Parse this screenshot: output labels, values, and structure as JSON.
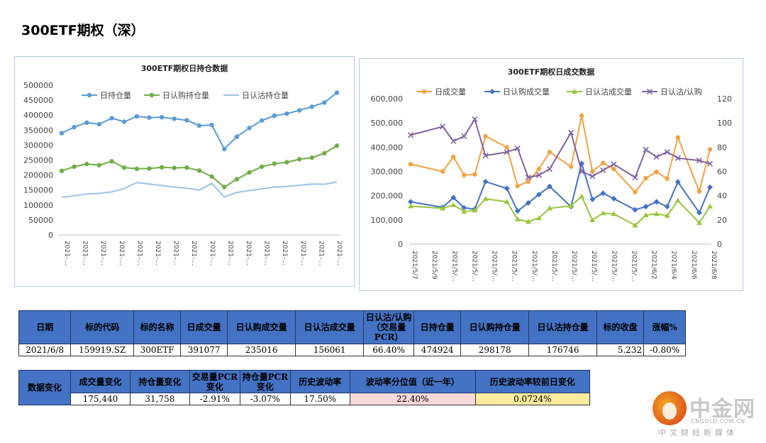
{
  "page_title": "300ETF期权（深）",
  "colors": {
    "holding_total": "#5b9bd5",
    "holding_call": "#70ad47",
    "holding_put": "#9dc3e6",
    "vol_total": "#f5a142",
    "vol_call": "#4472c4",
    "vol_put": "#9bc53d",
    "vol_pcr": "#8064a2",
    "table_header": "#4472c4"
  },
  "chart_data": [
    {
      "type": "line",
      "title": "300ETF期权日持仓数据",
      "x_tick_labels": [
        "2021-…",
        "2021-…",
        "2021-…",
        "2021-…",
        "2021-…",
        "2021-…",
        "2021-…",
        "2021-…",
        "2021-…",
        "2021-…",
        "2021-…",
        "2021-…",
        "2021-…",
        "2021-…",
        "2021-…",
        "2021-…"
      ],
      "ylim": [
        0,
        500000
      ],
      "yticks": [
        0,
        50000,
        100000,
        150000,
        200000,
        250000,
        300000,
        350000,
        400000,
        450000,
        500000
      ],
      "ytick_labels": [
        "0",
        "50000",
        "100000",
        "150000",
        "200000",
        "250000",
        "300000",
        "350000",
        "400000",
        "450000",
        "500000"
      ],
      "legend": "top",
      "grid": false,
      "series": [
        {
          "name": "日持仓量",
          "key": "holding_total",
          "values": [
            340000,
            360000,
            375000,
            370000,
            390000,
            378000,
            396000,
            392000,
            393000,
            388000,
            383000,
            365000,
            367000,
            287000,
            328000,
            357000,
            382000,
            398000,
            405000,
            416000,
            428000,
            442000,
            475000
          ]
        },
        {
          "name": "日认购持仓量",
          "key": "holding_call",
          "values": [
            214000,
            228000,
            237000,
            233000,
            246000,
            225000,
            221000,
            222000,
            226000,
            224000,
            225000,
            215000,
            195000,
            160000,
            186000,
            209000,
            228000,
            238000,
            243000,
            253000,
            258000,
            273000,
            298000
          ]
        },
        {
          "name": "日认沽持仓量",
          "key": "holding_put",
          "values": [
            126000,
            131000,
            137000,
            139000,
            144000,
            155000,
            175000,
            170000,
            165000,
            160000,
            156000,
            150000,
            172000,
            127000,
            142000,
            148000,
            154000,
            160000,
            162000,
            166000,
            170000,
            169000,
            177000
          ]
        }
      ]
    },
    {
      "type": "line",
      "title": "300ETF期权日成交数据",
      "x_tick_labels": [
        "2021/5/7",
        "2021/5/9",
        "2021/5/…",
        "2021/5/…",
        "2021/5/…",
        "2021/5/…",
        "2021/5/…",
        "2021/5/…",
        "2021/5/…",
        "2021/5/…",
        "2021/5/…",
        "2021/5/…",
        "2021/6/2",
        "2021/6/4",
        "2021/6/6",
        "2021/6/8"
      ],
      "ylim": [
        0,
        600000
      ],
      "yticks": [
        0,
        100000,
        200000,
        300000,
        400000,
        500000,
        600000
      ],
      "ytick_labels": [
        "0",
        "100,000",
        "200,000",
        "300,000",
        "400,000",
        "500,000",
        "600,000"
      ],
      "y2lim": [
        0,
        120
      ],
      "y2ticks": [
        0,
        20,
        40,
        60,
        80,
        100,
        120
      ],
      "y2tick_labels": [
        "0",
        "20",
        "40",
        "60",
        "80",
        "100",
        "120"
      ],
      "legend": "top",
      "grid": false,
      "x": [
        0,
        3,
        4,
        5,
        6,
        7,
        9,
        10,
        11,
        12,
        13,
        15,
        16,
        17,
        18,
        19,
        21,
        22,
        23,
        24,
        25,
        27,
        28
      ],
      "xmax": 28,
      "series": [
        {
          "name": "日成交量",
          "key": "vol_total",
          "axis": "left",
          "values": [
            330000,
            300000,
            360000,
            285000,
            288000,
            445000,
            400000,
            240000,
            258000,
            310000,
            380000,
            320000,
            530000,
            300000,
            335000,
            310000,
            215000,
            272000,
            298000,
            270000,
            440000,
            218000,
            391077
          ]
        },
        {
          "name": "日认购成交量",
          "key": "vol_call",
          "axis": "left",
          "values": [
            175000,
            152000,
            192000,
            150000,
            145000,
            258000,
            230000,
            137000,
            170000,
            205000,
            238000,
            155000,
            333000,
            185000,
            210000,
            188000,
            142000,
            155000,
            175000,
            155000,
            257000,
            130000,
            235016
          ]
        },
        {
          "name": "日认沽成交量",
          "key": "vol_put",
          "axis": "left",
          "values": [
            157000,
            148000,
            162000,
            135000,
            140000,
            187000,
            175000,
            103000,
            93000,
            108000,
            148000,
            158000,
            197000,
            100000,
            128000,
            125000,
            78000,
            120000,
            125000,
            118000,
            180000,
            88000,
            156061
          ]
        },
        {
          "name": "日认沽/认购",
          "key": "vol_pcr",
          "axis": "right",
          "values": [
            90,
            97,
            85,
            89,
            103,
            73,
            76,
            79,
            55,
            57,
            62,
            92,
            60,
            56,
            61,
            66,
            55,
            78,
            72,
            76,
            71,
            69,
            66.4
          ]
        }
      ]
    }
  ],
  "main_table": {
    "headers": [
      "日期",
      "标的代码",
      "标的名称",
      "日成交量",
      "日认购成交量",
      "日认沽成交量",
      "日认沽/认购（交易量PCR）",
      "日持仓量",
      "日认购持仓量",
      "日认沽持仓量",
      "标的收盘",
      "涨幅%"
    ],
    "row": [
      "2021/6/8",
      "159919.SZ",
      "300ETF",
      "391077",
      "235016",
      "156061",
      "66.40%",
      "474924",
      "298178",
      "176746",
      "5.232",
      "-0.80%"
    ]
  },
  "change_table": {
    "row_header": "数据变化",
    "headers": [
      "成交量变化",
      "持仓量变化",
      "交易量PCR变化",
      "持仓量PCR变化",
      "历史波动率",
      "波动率分位值（近一年）",
      "历史波动率较前日变化"
    ],
    "row": [
      "175,440",
      "31,758",
      "-2.91%",
      "-3.07%",
      "17.50%",
      "22.40%",
      "0.0724%"
    ]
  },
  "logo": {
    "name": "中金网",
    "url": "CNGOLD.COM.CN",
    "sub": "中文财经新媒体"
  }
}
